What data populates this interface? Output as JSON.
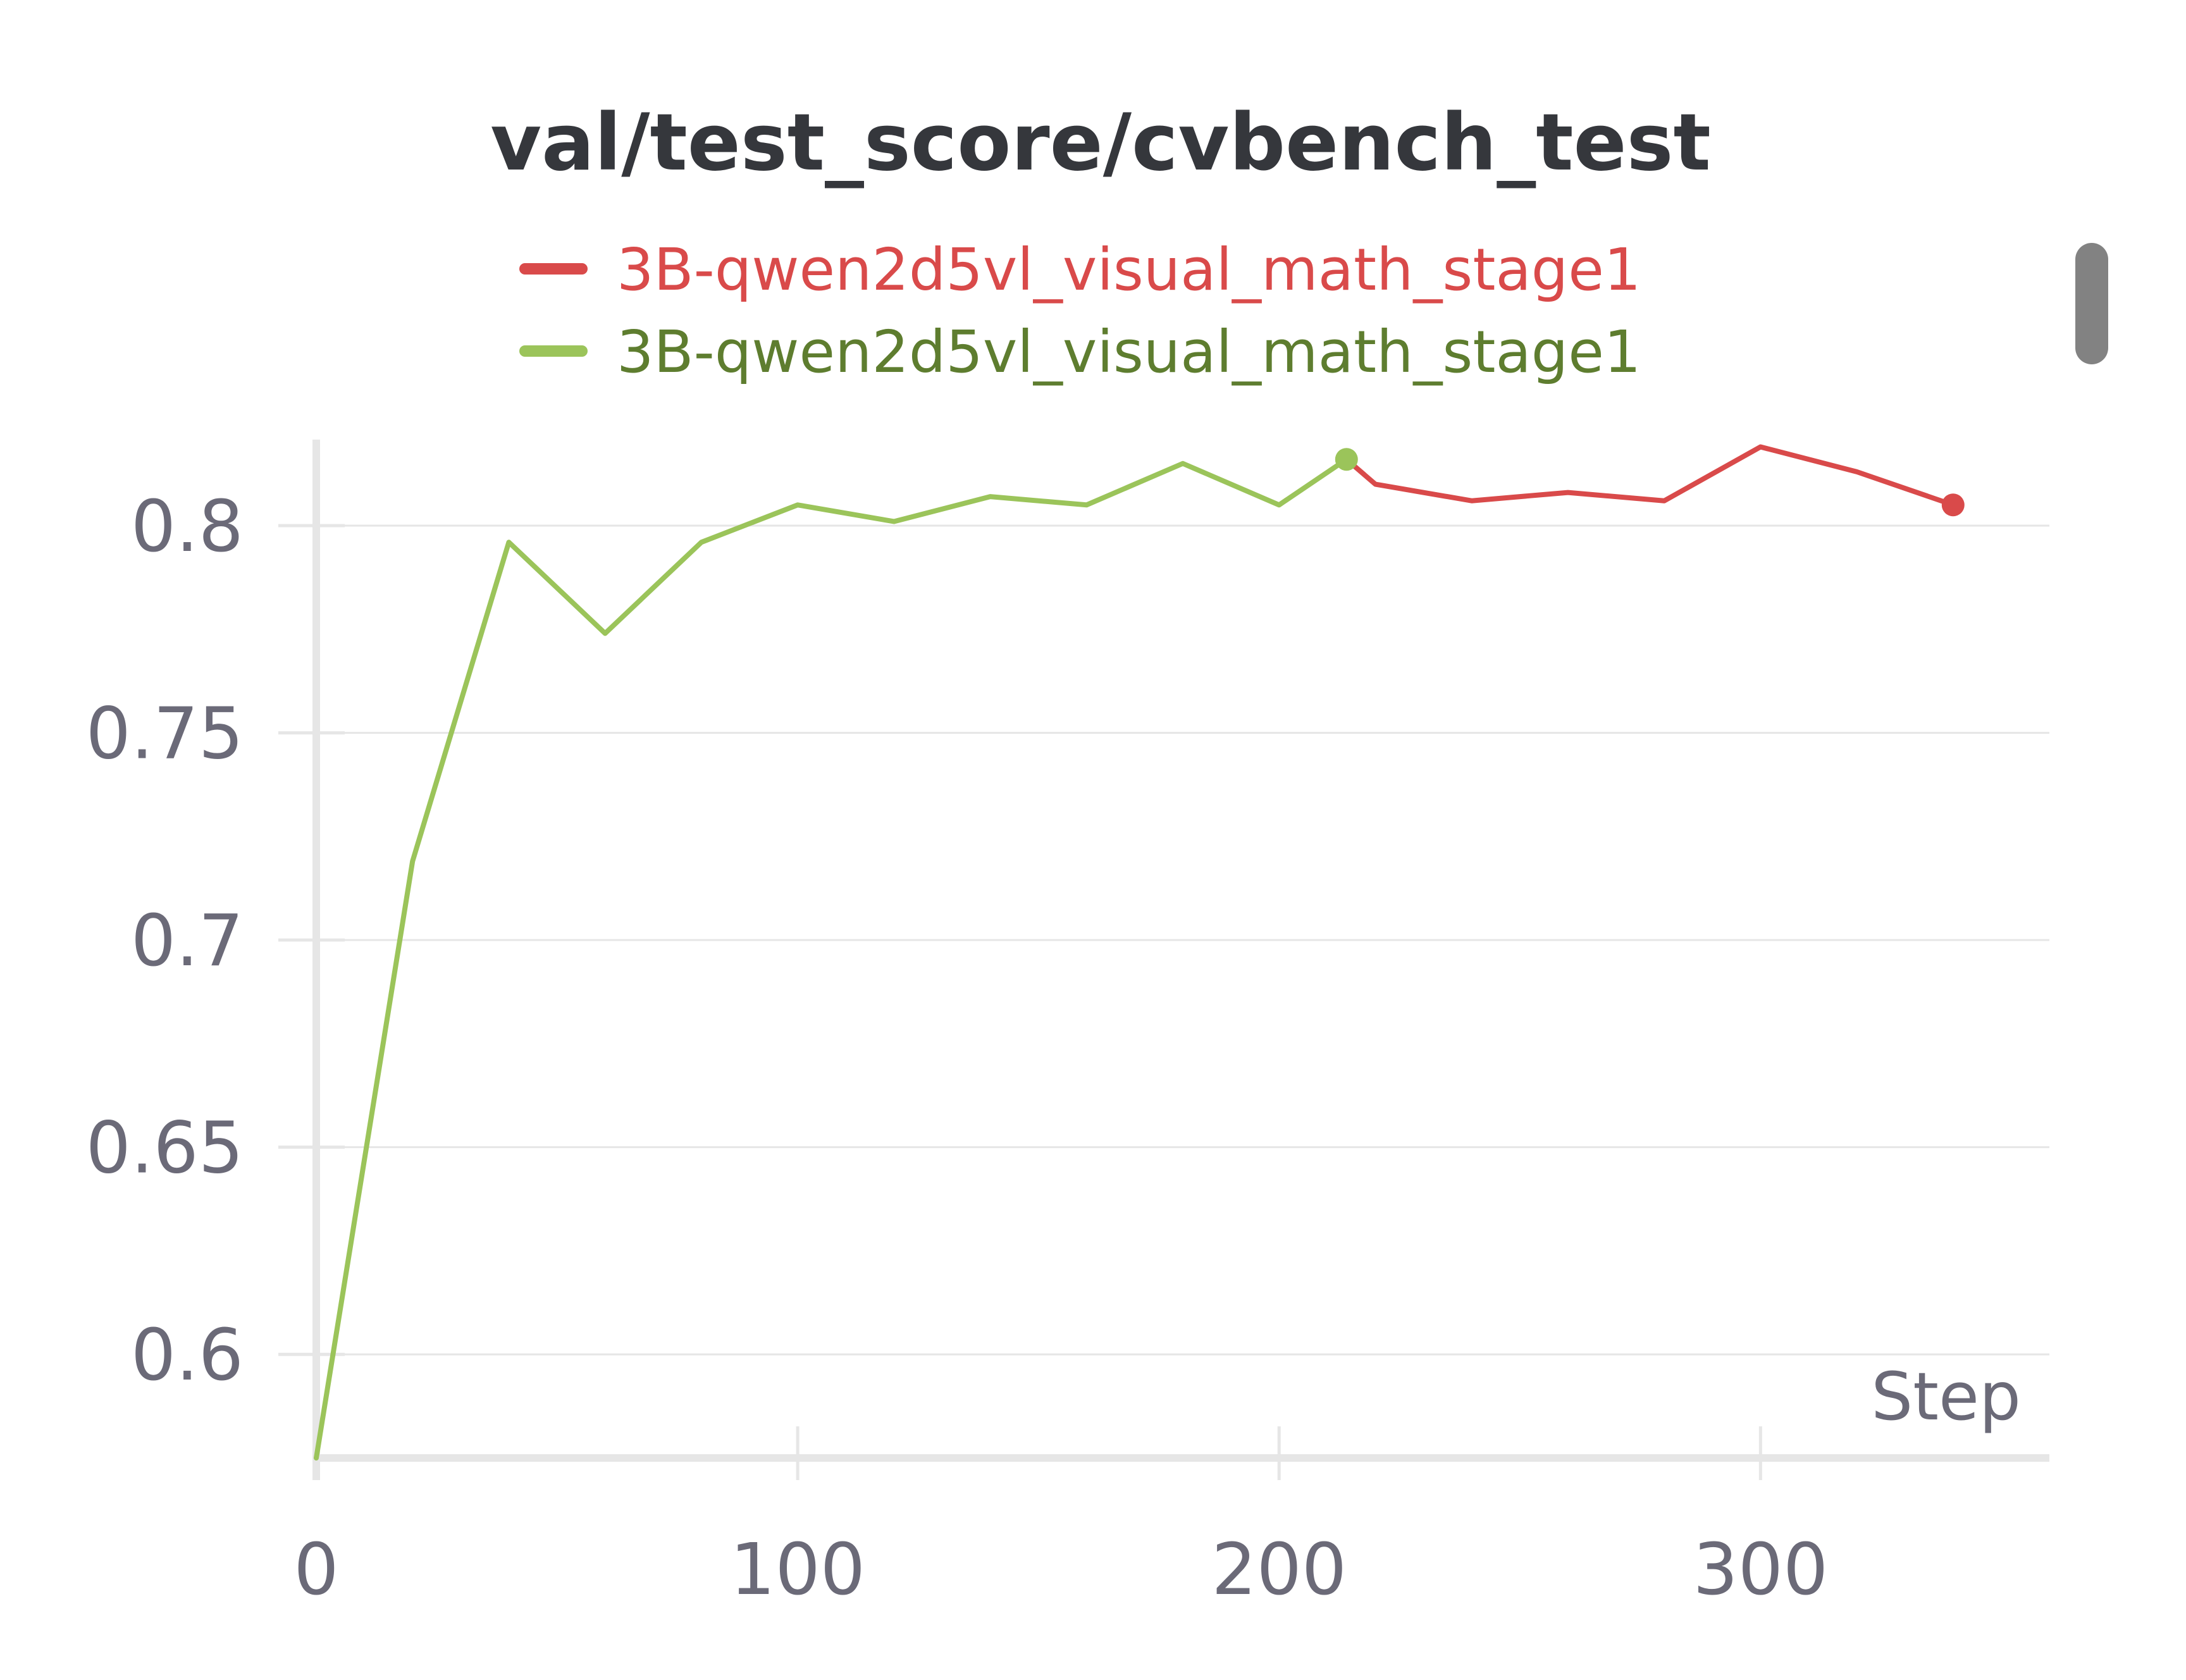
{
  "chart_data": {
    "type": "line",
    "title": "val/test_score/cvbench_test",
    "xlabel": "Step",
    "ylabel": "",
    "xlim": [
      0,
      360
    ],
    "ylim": [
      0.575,
      0.82
    ],
    "x_ticks": [
      0,
      100,
      200,
      300
    ],
    "x_tick_labels": [
      "0",
      "100",
      "200",
      "300"
    ],
    "y_ticks": [
      0.6,
      0.65,
      0.7,
      0.75,
      0.8
    ],
    "y_tick_labels": [
      "0.6",
      "0.65",
      "0.7",
      "0.75",
      "0.8"
    ],
    "grid": "horizontal",
    "legend_position": "top-center",
    "series": [
      {
        "name": "3B-qwen2d5vl_visual_math_stage1",
        "color": "#d94a4a",
        "label_color": "#d94a4a",
        "x": [
          214,
          220,
          240,
          260,
          280,
          300,
          320,
          340
        ],
        "y": [
          0.816,
          0.81,
          0.806,
          0.808,
          0.806,
          0.819,
          0.813,
          0.805
        ]
      },
      {
        "name": "3B-qwen2d5vl_visual_math_stage1",
        "color": "#9bc45a",
        "label_color": "#5e7d2f",
        "x": [
          0,
          20,
          40,
          60,
          80,
          100,
          120,
          140,
          160,
          180,
          200,
          214
        ],
        "y": [
          0.575,
          0.719,
          0.796,
          0.774,
          0.796,
          0.805,
          0.801,
          0.807,
          0.805,
          0.815,
          0.805,
          0.816
        ]
      }
    ]
  }
}
